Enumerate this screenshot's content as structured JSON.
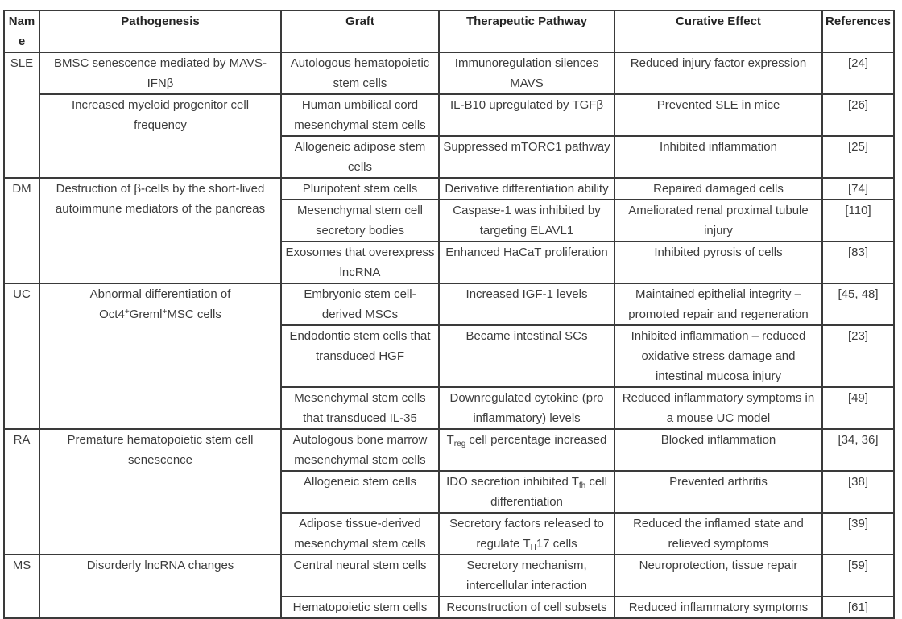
{
  "table": {
    "headers": [
      "Name",
      "Pathogenesis",
      "Graft",
      "Therapeutic Pathway",
      "Curative Effect",
      "References"
    ],
    "groups": [
      {
        "name": "SLE",
        "pathogenesis": [
          {
            "text": "BMSC senescence mediated by MAVS-IFNβ",
            "rows": 1
          },
          {
            "text": "Increased myeloid progenitor cell frequency",
            "rows": 2
          }
        ],
        "entries": [
          {
            "graft": "Autologous hematopoietic stem cells",
            "pathway": "Immunoregulation silences MAVS",
            "effect": "Reduced injury factor expression",
            "reference": "[24]"
          },
          {
            "graft": "Human umbilical cord mesenchymal stem cells",
            "pathway": "IL-B10 upregulated by TGFβ",
            "effect": "Prevented SLE in mice",
            "reference": "[26]"
          },
          {
            "graft": "Allogeneic adipose stem cells",
            "pathway": "Suppressed mTORC1 pathway",
            "effect": "Inhibited inflammation",
            "reference": "[25]"
          }
        ]
      },
      {
        "name": "DM",
        "pathogenesis": [
          {
            "text": "Destruction of β-cells by the short-lived autoimmune mediators of the pancreas",
            "rows": 3
          }
        ],
        "entries": [
          {
            "graft": "Pluripotent stem cells",
            "pathway": "Derivative differentiation ability",
            "effect": "Repaired damaged cells",
            "reference": "[74]"
          },
          {
            "graft": "Mesenchymal stem cell secretory bodies",
            "pathway": "Caspase-1 was inhibited by targeting ELAVL1",
            "effect": "Ameliorated renal proximal tubule injury",
            "reference": "[110]"
          },
          {
            "graft": "Exosomes that overexpress lncRNA",
            "pathway": "Enhanced HaCaT proliferation",
            "effect": "Inhibited pyrosis of cells",
            "reference": "[83]"
          }
        ]
      },
      {
        "name": "UC",
        "pathogenesis": [
          {
            "text": "Abnormal differentiation of Oct4<sup>+</sup>Greml<sup>+</sup>MSC cells",
            "rows": 3
          }
        ],
        "entries": [
          {
            "graft": "Embryonic stem cell-derived MSCs",
            "pathway": "Increased IGF-1 levels",
            "effect": "Maintained epithelial integrity – promoted repair and regeneration",
            "reference": "[45, 48]"
          },
          {
            "graft": "Endodontic stem cells that transduced HGF",
            "pathway": "Became intestinal SCs",
            "effect": "Inhibited inflammation – reduced oxidative stress damage and intestinal mucosa injury",
            "reference": "[23]"
          },
          {
            "graft": "Mesenchymal stem cells that transduced IL-35",
            "pathway": "Downregulated cytokine (pro inflammatory) levels",
            "effect": "Reduced inflammatory symptoms in a mouse UC model",
            "reference": "[49]"
          }
        ]
      },
      {
        "name": "RA",
        "pathogenesis": [
          {
            "text": "Premature hematopoietic stem cell senescence",
            "rows": 3
          }
        ],
        "entries": [
          {
            "graft": "Autologous bone marrow mesenchymal stem cells",
            "pathway": "T<sub>reg</sub> cell percentage increased",
            "effect": "Blocked inflammation",
            "reference": "[34, 36]"
          },
          {
            "graft": "Allogeneic stem cells",
            "pathway": "IDO secretion inhibited T<sub>fh</sub> cell differentiation",
            "effect": "Prevented arthritis",
            "reference": "[38]"
          },
          {
            "graft": "Adipose tissue-derived mesenchymal stem cells",
            "pathway": "Secretory factors released to regulate T<sub>H</sub>17 cells",
            "effect": "Reduced the inflamed state and relieved symptoms",
            "reference": "[39]"
          }
        ]
      },
      {
        "name": "MS",
        "pathogenesis": [
          {
            "text": "Disorderly lncRNA changes",
            "rows": 2
          }
        ],
        "entries": [
          {
            "graft": "Central neural stem cells",
            "pathway": "Secretory mechanism, intercellular interaction",
            "effect": "Neuroprotection, tissue repair",
            "reference": "[59]"
          },
          {
            "graft": "Hematopoietic stem cells",
            "pathway": "Reconstruction of cell subsets",
            "effect": "Reduced inflammatory symptoms",
            "reference": "[61]"
          }
        ]
      }
    ]
  }
}
